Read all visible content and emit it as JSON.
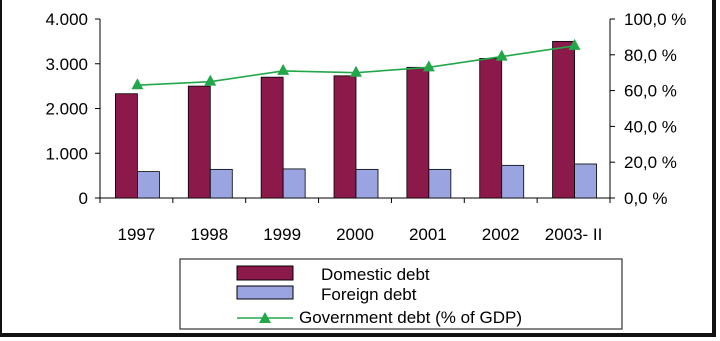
{
  "chart_data": {
    "type": "bar",
    "categories": [
      "1997",
      "1998",
      "1999",
      "2000",
      "2001",
      "2002",
      "2003- II"
    ],
    "series": [
      {
        "name": "Domestic debt",
        "type": "bar",
        "axis": "left",
        "color": "#8b1a4a",
        "values": [
          2330,
          2500,
          2700,
          2730,
          2920,
          3120,
          3500
        ]
      },
      {
        "name": "Foreign debt",
        "type": "bar",
        "axis": "left",
        "color": "#9aa4e0",
        "values": [
          590,
          640,
          650,
          640,
          640,
          730,
          760
        ]
      },
      {
        "name": "Government debt (% of GDP)",
        "type": "line",
        "axis": "right",
        "color": "#22a84a",
        "values": [
          63,
          65,
          71,
          70,
          73,
          79,
          85
        ]
      }
    ],
    "y_left": {
      "ticks": [
        "0",
        "1.000",
        "2.000",
        "3.000",
        "4.000"
      ],
      "range": [
        0,
        4000
      ]
    },
    "y_right": {
      "ticks": [
        "0,0 %",
        "20,0 %",
        "40,0 %",
        "60,0 %",
        "80,0 %",
        "100,0 %"
      ],
      "range": [
        0,
        100
      ]
    },
    "legend_position": "bottom",
    "grid": false
  }
}
